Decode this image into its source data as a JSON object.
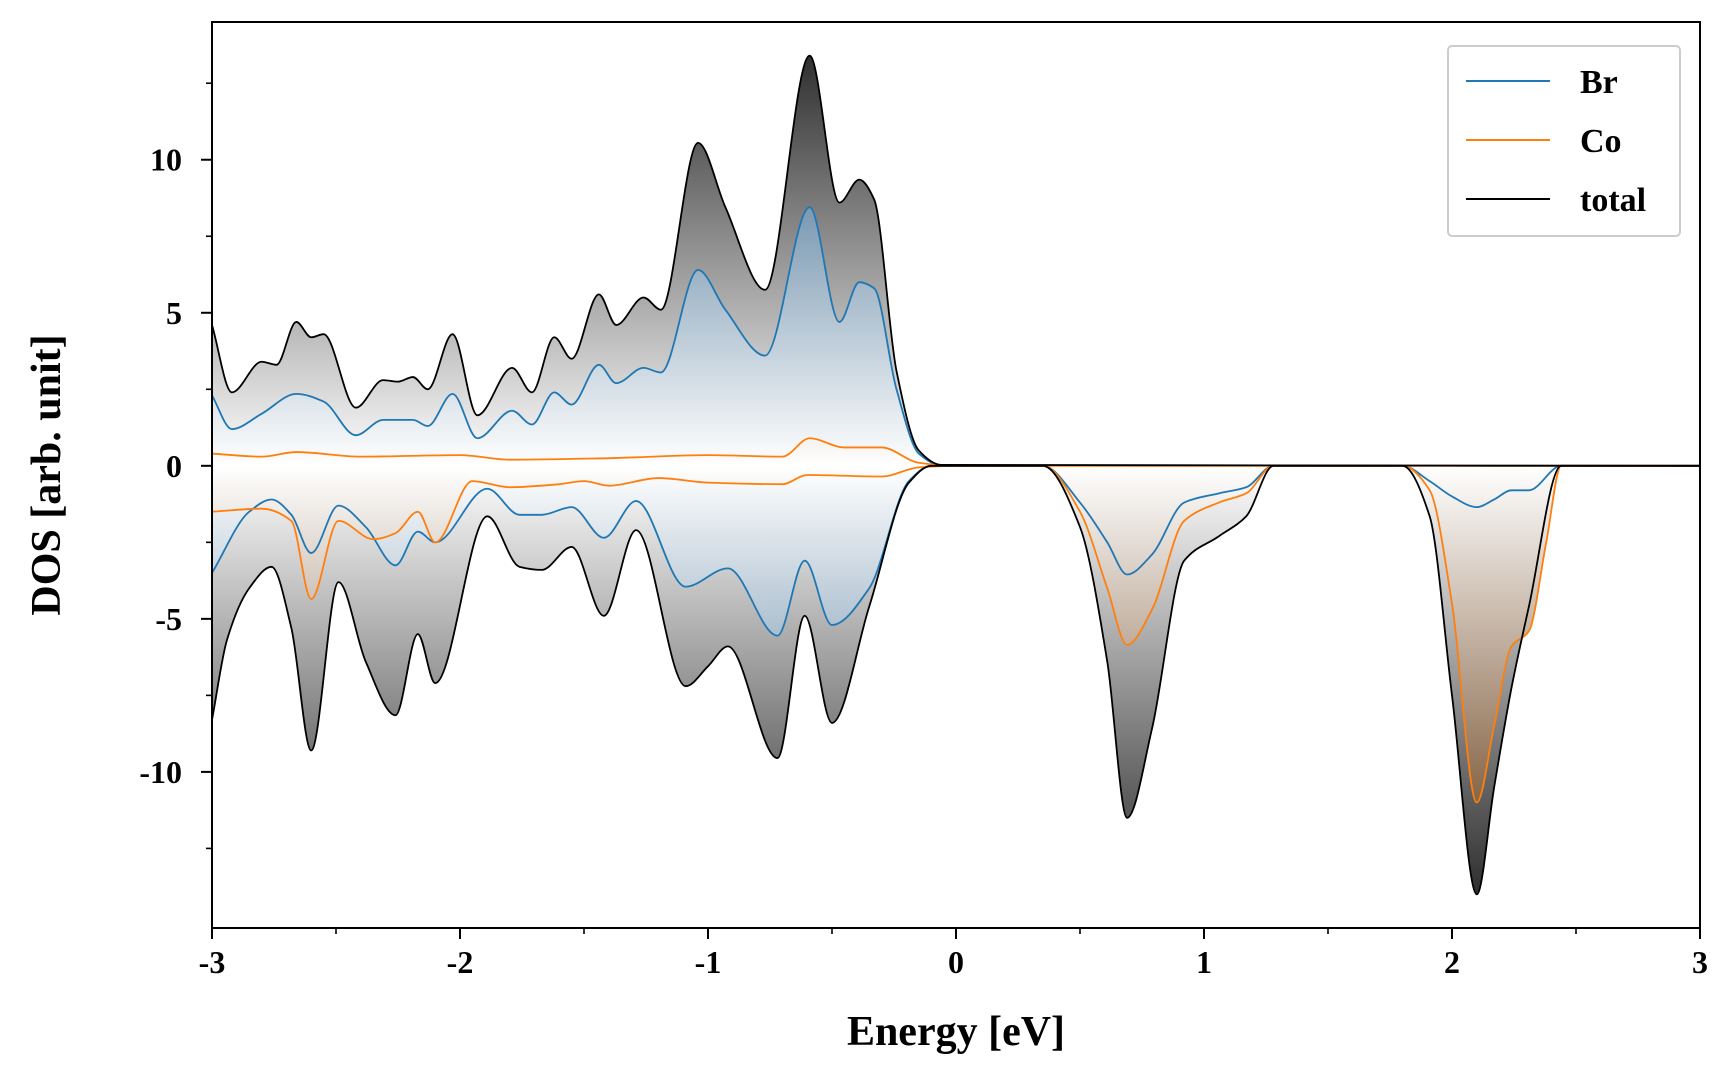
{
  "chart_data": {
    "type": "line",
    "xlabel": "Energy [eV]",
    "ylabel": "DOS [arb. unit]",
    "xlim": [
      -3,
      3
    ],
    "ylim": [
      -15.1,
      14.5
    ],
    "xticks": [
      -3,
      -2,
      -1,
      0,
      1,
      2,
      3
    ],
    "xticks_minor": [
      -2.5,
      -1.5,
      -0.5,
      0.5,
      1.5,
      2.5
    ],
    "yticks": [
      -10,
      -5,
      0,
      5,
      10
    ],
    "yticks_minor": [
      -12.5,
      -7.5,
      -2.5,
      2.5,
      7.5,
      12.5
    ],
    "legend": "upper right",
    "series": [
      {
        "name": "Br",
        "color": "#1f77b4",
        "fill_color": "#1b4f7a",
        "up": {
          "x": [
            -3,
            -2.92,
            -2.8,
            -2.66,
            -2.55,
            -2.42,
            -2.31,
            -2.19,
            -2.13,
            -2.03,
            -1.93,
            -1.79,
            -1.71,
            -1.62,
            -1.55,
            -1.44,
            -1.37,
            -1.26,
            -1.19,
            -1.04,
            -0.93,
            -0.77,
            -0.59,
            -0.47,
            -0.39,
            -0.33,
            -0.24,
            -0.15,
            -0.06,
            3
          ],
          "values": [
            2.3,
            1.2,
            1.7,
            2.35,
            2.1,
            1.0,
            1.5,
            1.5,
            1.3,
            2.35,
            0.9,
            1.8,
            1.35,
            2.4,
            2.0,
            3.3,
            2.7,
            3.2,
            3.05,
            6.4,
            5.1,
            3.6,
            8.45,
            4.7,
            6.0,
            5.8,
            2.5,
            0.4,
            0.02,
            0
          ]
        },
        "down": {
          "x": [
            -3,
            -2.85,
            -2.76,
            -2.68,
            -2.6,
            -2.49,
            -2.38,
            -2.26,
            -2.17,
            -2.1,
            -1.89,
            -1.76,
            -1.67,
            -1.55,
            -1.42,
            -1.29,
            -1.09,
            -0.92,
            -0.72,
            -0.61,
            -0.5,
            -0.35,
            -0.19,
            -0.1,
            0.35,
            0.5,
            0.61,
            0.69,
            0.79,
            0.92,
            1.06,
            1.17,
            1.28,
            1.8,
            1.91,
            2.0,
            2.1,
            2.17,
            2.24,
            2.31,
            2.44,
            3
          ],
          "values": [
            -3.5,
            -1.5,
            -1.1,
            -1.6,
            -2.85,
            -1.3,
            -2.0,
            -3.25,
            -2.15,
            -2.5,
            -0.75,
            -1.6,
            -1.6,
            -1.35,
            -2.35,
            -1.15,
            -3.95,
            -3.35,
            -5.55,
            -3.1,
            -5.2,
            -4.0,
            -0.5,
            0,
            0,
            -1.2,
            -2.5,
            -3.55,
            -2.9,
            -1.2,
            -0.9,
            -0.7,
            0,
            0,
            -0.5,
            -1.0,
            -1.35,
            -1.1,
            -0.8,
            -0.8,
            0,
            0
          ]
        }
      },
      {
        "name": "Co",
        "color": "#ff7f0e",
        "fill_color": "#5a2c02",
        "up": {
          "x": [
            -3,
            -2.8,
            -2.66,
            -2.4,
            -2.0,
            -1.8,
            -1.4,
            -1.0,
            -0.7,
            -0.59,
            -0.45,
            -0.3,
            -0.15,
            0,
            3
          ],
          "values": [
            0.4,
            0.3,
            0.45,
            0.3,
            0.35,
            0.2,
            0.25,
            0.35,
            0.3,
            0.9,
            0.6,
            0.6,
            0.1,
            0,
            0
          ]
        },
        "down": {
          "x": [
            -3,
            -2.8,
            -2.68,
            -2.6,
            -2.49,
            -2.35,
            -2.26,
            -2.17,
            -2.1,
            -1.95,
            -1.8,
            -1.6,
            -1.5,
            -1.4,
            -1.2,
            -1.0,
            -0.7,
            -0.6,
            -0.3,
            -0.15,
            0,
            0.35,
            0.5,
            0.61,
            0.69,
            0.79,
            0.92,
            1.06,
            1.17,
            1.28,
            1.8,
            1.91,
            2.0,
            2.1,
            2.17,
            2.24,
            2.31,
            2.38,
            2.44,
            3
          ],
          "values": [
            -1.5,
            -1.4,
            -1.8,
            -4.35,
            -1.8,
            -2.4,
            -2.2,
            -1.5,
            -2.5,
            -0.5,
            -0.7,
            -0.6,
            -0.5,
            -0.65,
            -0.4,
            -0.55,
            -0.6,
            -0.3,
            -0.35,
            -0.05,
            0,
            0,
            -1.5,
            -4.0,
            -5.85,
            -4.7,
            -1.8,
            -1.2,
            -0.9,
            0,
            0,
            -0.8,
            -4.5,
            -11.0,
            -8.5,
            -5.9,
            -5.4,
            -2.5,
            0,
            0
          ]
        }
      },
      {
        "name": "total",
        "color": "#000000",
        "fill_color": "#1e1e1e",
        "up": {
          "x": [
            -3,
            -2.92,
            -2.8,
            -2.74,
            -2.66,
            -2.6,
            -2.55,
            -2.42,
            -2.31,
            -2.25,
            -2.19,
            -2.13,
            -2.03,
            -1.93,
            -1.79,
            -1.71,
            -1.62,
            -1.55,
            -1.44,
            -1.37,
            -1.26,
            -1.19,
            -1.04,
            -0.93,
            -0.77,
            -0.59,
            -0.47,
            -0.39,
            -0.33,
            -0.24,
            -0.15,
            -0.06,
            3
          ],
          "values": [
            4.6,
            2.4,
            3.4,
            3.3,
            4.7,
            4.2,
            4.3,
            1.9,
            2.8,
            2.75,
            2.9,
            2.5,
            4.3,
            1.65,
            3.2,
            2.4,
            4.2,
            3.5,
            5.6,
            4.6,
            5.5,
            5.1,
            10.55,
            8.45,
            5.75,
            13.4,
            8.6,
            9.35,
            8.7,
            3.1,
            0.5,
            0.03,
            0
          ]
        },
        "down": {
          "x": [
            -3,
            -2.94,
            -2.85,
            -2.76,
            -2.68,
            -2.6,
            -2.49,
            -2.38,
            -2.26,
            -2.17,
            -2.1,
            -1.89,
            -1.76,
            -1.67,
            -1.55,
            -1.42,
            -1.29,
            -1.09,
            -1.0,
            -0.92,
            -0.72,
            -0.61,
            -0.5,
            -0.35,
            -0.19,
            -0.1,
            0.35,
            0.5,
            0.61,
            0.69,
            0.79,
            0.92,
            1.06,
            1.17,
            1.28,
            1.8,
            1.91,
            2.0,
            2.1,
            2.17,
            2.24,
            2.31,
            2.44,
            3
          ],
          "values": [
            -8.3,
            -5.7,
            -4.0,
            -3.3,
            -5.3,
            -9.3,
            -3.8,
            -6.4,
            -8.15,
            -5.5,
            -7.1,
            -1.65,
            -3.3,
            -3.4,
            -2.65,
            -4.9,
            -2.1,
            -7.2,
            -6.55,
            -5.9,
            -9.55,
            -4.9,
            -8.4,
            -4.6,
            -0.55,
            0,
            0,
            -2.0,
            -6.4,
            -11.5,
            -8.6,
            -3.1,
            -2.3,
            -1.65,
            0,
            0,
            -1.65,
            -7.5,
            -14.0,
            -10.5,
            -7.25,
            -4.6,
            0,
            0
          ]
        }
      }
    ]
  }
}
